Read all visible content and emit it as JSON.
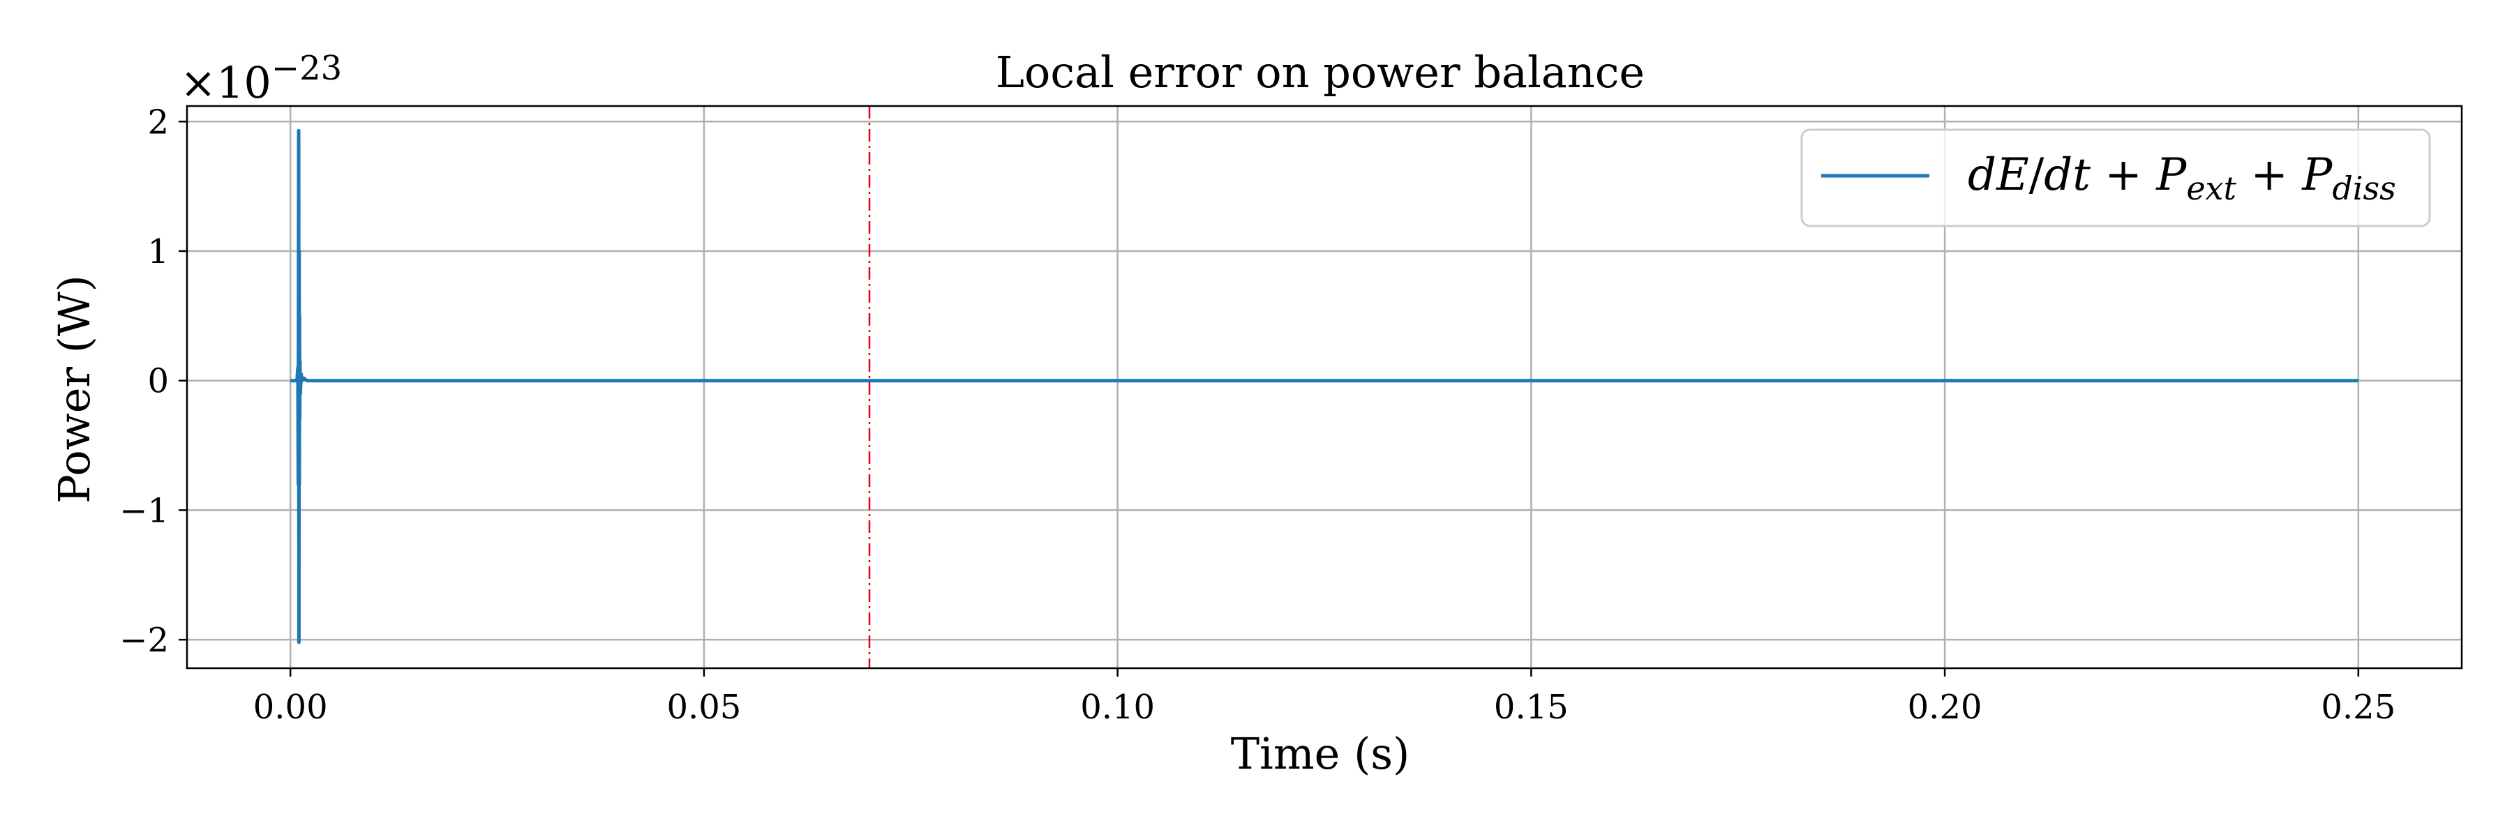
{
  "chart_data": {
    "type": "line",
    "title": "Local error on power balance",
    "xlabel": "Time (s)",
    "ylabel": "Power (W)",
    "xlim": [
      -0.0125,
      0.2625
    ],
    "ylim": [
      -2.22,
      2.12
    ],
    "y_offset": {
      "base": "×10",
      "exponent": "−23"
    },
    "x_ticks": [
      0.0,
      0.05,
      0.1,
      0.15,
      0.2,
      0.25
    ],
    "x_tick_labels": [
      "0.00",
      "0.05",
      "0.10",
      "0.15",
      "0.20",
      "0.25"
    ],
    "y_ticks": [
      -2,
      -1,
      0,
      1,
      2
    ],
    "y_tick_labels": [
      "−2",
      "−1",
      "0",
      "1",
      "2"
    ],
    "grid": true,
    "legend_position": "top-right",
    "vline": {
      "x": 0.07,
      "color": "#e8000b",
      "style": "dash-dot"
    },
    "series": [
      {
        "name": "dE/dt + P_ext + P_diss",
        "color": "#1f77b4",
        "x": [
          0.0,
          0.0008,
          0.0009,
          0.00095,
          0.001,
          0.00103,
          0.00106,
          0.00108,
          0.0011,
          0.00113,
          0.00116,
          0.0012,
          0.0013,
          0.0014,
          0.0016,
          0.002,
          0.01,
          0.25
        ],
        "y": [
          0.0,
          0.0,
          0.1,
          -0.8,
          1.93,
          -2.02,
          1.0,
          -0.8,
          0.5,
          -0.3,
          0.15,
          -0.1,
          0.05,
          0.0,
          0.02,
          0.0,
          0.0,
          0.0
        ]
      }
    ]
  }
}
